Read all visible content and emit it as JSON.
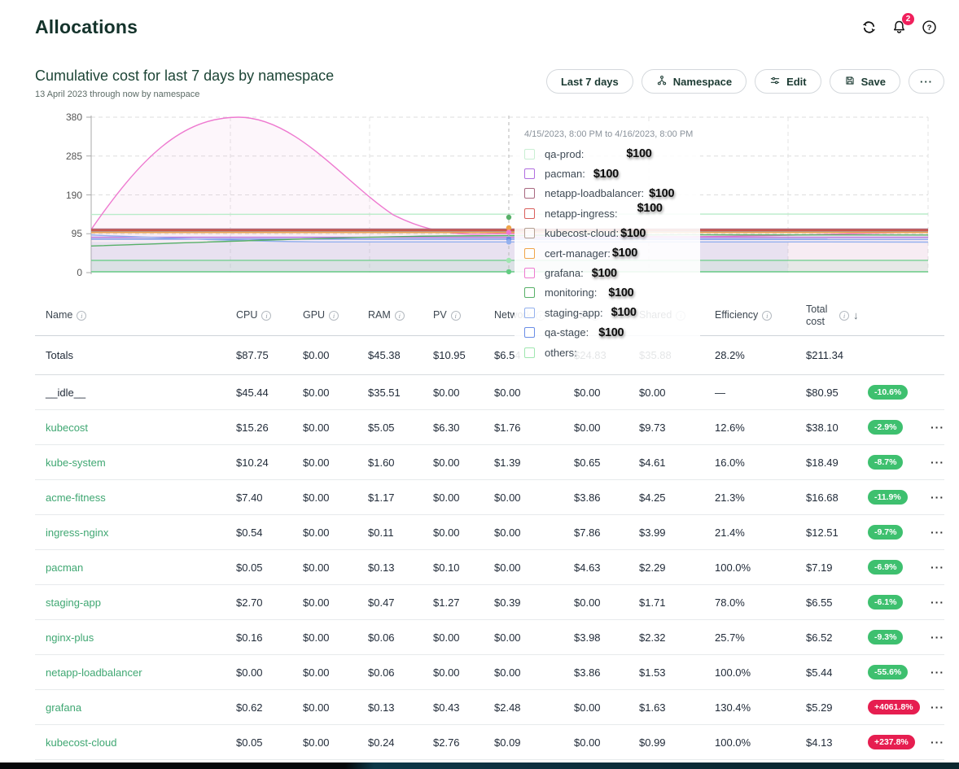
{
  "header": {
    "title": "Allocations",
    "notification_count": "2"
  },
  "section": {
    "title": "Cumulative cost for last 7 days by namespace",
    "subtitle": "13 April 2023 through now by namespace",
    "buttons": {
      "time_window": "Last 7 days",
      "aggregate": "Namespace",
      "edit": "Edit",
      "save": "Save",
      "more": "···"
    }
  },
  "chart_data": {
    "type": "line",
    "title": "Cumulative cost for last 7 days by namespace",
    "xlabel": "",
    "ylabel": "",
    "ylim": [
      0,
      380
    ],
    "yticks": [
      380,
      285,
      190,
      95,
      0
    ],
    "grid": true,
    "hover_window": "4/15/2023, 8:00 PM to 4/16/2023, 8:00 PM",
    "series": [
      {
        "name": "qa-prod",
        "color": "#b9ecc9",
        "values": [
          143,
          143,
          143,
          143,
          143,
          143,
          143
        ]
      },
      {
        "name": "pacman",
        "color": "#b06ee0",
        "values": [
          84,
          84,
          84,
          84,
          84,
          84,
          84
        ]
      },
      {
        "name": "netapp-loadbalancer",
        "color": "#a86880",
        "values": [
          106,
          106,
          106,
          106,
          106,
          106,
          106
        ]
      },
      {
        "name": "netapp-ingress",
        "color": "#cc5a4e",
        "values": [
          103,
          103,
          103,
          103,
          103,
          103,
          103
        ]
      },
      {
        "name": "kubecost-cloud",
        "color": "#b5a092",
        "values": [
          100,
          100,
          100,
          100,
          100,
          100,
          100
        ]
      },
      {
        "name": "cert-manager",
        "color": "#f0a44a",
        "values": [
          98,
          98,
          98,
          98,
          98,
          98,
          98
        ]
      },
      {
        "name": "grafana",
        "color": "#ee7ad0",
        "values": [
          105,
          380,
          170,
          95,
          90,
          90,
          100
        ]
      },
      {
        "name": "monitoring",
        "color": "#57b068",
        "values": [
          65,
          80,
          89,
          91,
          91,
          91,
          91
        ]
      },
      {
        "name": "staging-app",
        "color": "#93b0ee",
        "values": [
          92,
          80,
          75,
          75,
          75,
          75,
          75
        ]
      },
      {
        "name": "qa-stage",
        "color": "#6a8de6",
        "values": [
          82,
          82,
          82,
          82,
          82,
          82,
          82
        ]
      },
      {
        "name": "others",
        "color": "#63cc82",
        "values": [
          2,
          2,
          2,
          2,
          2,
          2,
          2
        ]
      }
    ]
  },
  "tooltip": {
    "title": "4/15/2023, 8:00 PM to 4/16/2023, 8:00 PM",
    "items": [
      {
        "label": "qa-prod:",
        "value": "$100",
        "color": "#c9efd3"
      },
      {
        "label": "pacman:",
        "value": "$100",
        "color": "#b06ee0"
      },
      {
        "label": "netapp-loadbalancer:",
        "value": "$100",
        "color": "#a86880"
      },
      {
        "label": "netapp-ingress:",
        "value": "$100",
        "color": "#d95f5c"
      },
      {
        "label": "kubecost-cloud:",
        "value": "$100",
        "color": "#b5a092"
      },
      {
        "label": "cert-manager:",
        "value": "$100",
        "color": "#f0a44a"
      },
      {
        "label": "grafana:",
        "value": "$100",
        "color": "#ee7ad0"
      },
      {
        "label": "monitoring:",
        "value": "$100",
        "color": "#57b068"
      },
      {
        "label": "staging-app:",
        "value": "$100",
        "color": "#93b0ee"
      },
      {
        "label": "qa-stage:",
        "value": "$100",
        "color": "#6a8de6"
      },
      {
        "label": "others:",
        "value": "",
        "color": "#9fe6b0"
      }
    ]
  },
  "table": {
    "columns": [
      {
        "label": "Name",
        "info": true
      },
      {
        "label": "CPU",
        "info": true
      },
      {
        "label": "GPU",
        "info": true
      },
      {
        "label": "RAM",
        "info": true
      },
      {
        "label": "PV",
        "info": true
      },
      {
        "label": "Network",
        "info": true
      },
      {
        "label": "LB",
        "info": true
      },
      {
        "label": "Shared",
        "info": true
      },
      {
        "label": "Efficiency",
        "info": true
      },
      {
        "label": "Total cost",
        "info": true,
        "sort": "↓"
      }
    ],
    "rows": [
      {
        "name": "Totals",
        "link": false,
        "cpu": "$87.75",
        "gpu": "$0.00",
        "ram": "$45.38",
        "pv": "$10.95",
        "network": "$6.54",
        "lb": "$24.83",
        "shared": "$35.88",
        "efficiency": "28.2%",
        "total": "$211.34",
        "badge": "",
        "badge_color": "",
        "menu": false
      },
      {
        "name": "__idle__",
        "link": false,
        "cpu": "$45.44",
        "gpu": "$0.00",
        "ram": "$35.51",
        "pv": "$0.00",
        "network": "$0.00",
        "lb": "$0.00",
        "shared": "$0.00",
        "efficiency": "—",
        "total": "$80.95",
        "badge": "-10.6%",
        "badge_color": "green",
        "menu": false
      },
      {
        "name": "kubecost",
        "link": true,
        "cpu": "$15.26",
        "gpu": "$0.00",
        "ram": "$5.05",
        "pv": "$6.30",
        "network": "$1.76",
        "lb": "$0.00",
        "shared": "$9.73",
        "efficiency": "12.6%",
        "total": "$38.10",
        "badge": "-2.9%",
        "badge_color": "green",
        "menu": true
      },
      {
        "name": "kube-system",
        "link": true,
        "cpu": "$10.24",
        "gpu": "$0.00",
        "ram": "$1.60",
        "pv": "$0.00",
        "network": "$1.39",
        "lb": "$0.65",
        "shared": "$4.61",
        "efficiency": "16.0%",
        "total": "$18.49",
        "badge": "-8.7%",
        "badge_color": "green",
        "menu": true
      },
      {
        "name": "acme-fitness",
        "link": true,
        "cpu": "$7.40",
        "gpu": "$0.00",
        "ram": "$1.17",
        "pv": "$0.00",
        "network": "$0.00",
        "lb": "$3.86",
        "shared": "$4.25",
        "efficiency": "21.3%",
        "total": "$16.68",
        "badge": "-11.9%",
        "badge_color": "green",
        "menu": true
      },
      {
        "name": "ingress-nginx",
        "link": true,
        "cpu": "$0.54",
        "gpu": "$0.00",
        "ram": "$0.11",
        "pv": "$0.00",
        "network": "$0.00",
        "lb": "$7.86",
        "shared": "$3.99",
        "efficiency": "21.4%",
        "total": "$12.51",
        "badge": "-9.7%",
        "badge_color": "green",
        "menu": true
      },
      {
        "name": "pacman",
        "link": true,
        "cpu": "$0.05",
        "gpu": "$0.00",
        "ram": "$0.13",
        "pv": "$0.10",
        "network": "$0.00",
        "lb": "$4.63",
        "shared": "$2.29",
        "efficiency": "100.0%",
        "total": "$7.19",
        "badge": "-6.9%",
        "badge_color": "green",
        "menu": true
      },
      {
        "name": "staging-app",
        "link": true,
        "cpu": "$2.70",
        "gpu": "$0.00",
        "ram": "$0.47",
        "pv": "$1.27",
        "network": "$0.39",
        "lb": "$0.00",
        "shared": "$1.71",
        "efficiency": "78.0%",
        "total": "$6.55",
        "badge": "-6.1%",
        "badge_color": "green",
        "menu": true
      },
      {
        "name": "nginx-plus",
        "link": true,
        "cpu": "$0.16",
        "gpu": "$0.00",
        "ram": "$0.06",
        "pv": "$0.00",
        "network": "$0.00",
        "lb": "$3.98",
        "shared": "$2.32",
        "efficiency": "25.7%",
        "total": "$6.52",
        "badge": "-9.3%",
        "badge_color": "green",
        "menu": true
      },
      {
        "name": "netapp-loadbalancer",
        "link": true,
        "cpu": "$0.00",
        "gpu": "$0.00",
        "ram": "$0.06",
        "pv": "$0.00",
        "network": "$0.00",
        "lb": "$3.86",
        "shared": "$1.53",
        "efficiency": "100.0%",
        "total": "$5.44",
        "badge": "-55.6%",
        "badge_color": "green",
        "menu": true
      },
      {
        "name": "grafana",
        "link": true,
        "cpu": "$0.62",
        "gpu": "$0.00",
        "ram": "$0.13",
        "pv": "$0.43",
        "network": "$2.48",
        "lb": "$0.00",
        "shared": "$1.63",
        "efficiency": "130.4%",
        "total": "$5.29",
        "badge": "+4061.8%",
        "badge_color": "red",
        "menu": true
      },
      {
        "name": "kubecost-cloud",
        "link": true,
        "cpu": "$0.05",
        "gpu": "$0.00",
        "ram": "$0.24",
        "pv": "$2.76",
        "network": "$0.09",
        "lb": "$0.00",
        "shared": "$0.99",
        "efficiency": "100.0%",
        "total": "$4.13",
        "badge": "+237.8%",
        "badge_color": "red",
        "menu": true
      }
    ]
  }
}
